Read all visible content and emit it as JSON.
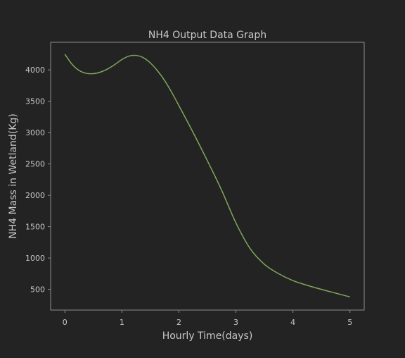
{
  "chart_data": {
    "type": "line",
    "title": "NH4 Output Data Graph",
    "xlabel": "Hourly Time(days)",
    "ylabel": "NH4 Mass in Wetland(Kg)",
    "xlim": [
      -0.25,
      5.25
    ],
    "ylim": [
      170,
      4440
    ],
    "x_ticks": [
      0,
      1,
      2,
      3,
      4,
      5
    ],
    "y_ticks": [
      500,
      1000,
      1500,
      2000,
      2500,
      3000,
      3500,
      4000
    ],
    "grid": false,
    "colors": {
      "background": "#232323",
      "axes_frame": "#8c8c8c",
      "text": "#c8c8c8",
      "line": "#7ea85a"
    },
    "series": [
      {
        "x": [
          0,
          0.125,
          0.25,
          0.375,
          0.5,
          0.625,
          0.75,
          0.875,
          1.0,
          1.125,
          1.25,
          1.375,
          1.5,
          1.625,
          1.75,
          1.875,
          2.0,
          2.25,
          2.5,
          2.75,
          3.0,
          3.25,
          3.5,
          3.75,
          4.0,
          4.25,
          4.5,
          4.75,
          5.0
        ],
        "y": [
          4250,
          4090,
          3990,
          3945,
          3940,
          3965,
          4015,
          4085,
          4165,
          4220,
          4230,
          4195,
          4110,
          3985,
          3830,
          3640,
          3430,
          3000,
          2550,
          2080,
          1560,
          1150,
          900,
          750,
          640,
          565,
          500,
          440,
          380
        ]
      }
    ]
  }
}
